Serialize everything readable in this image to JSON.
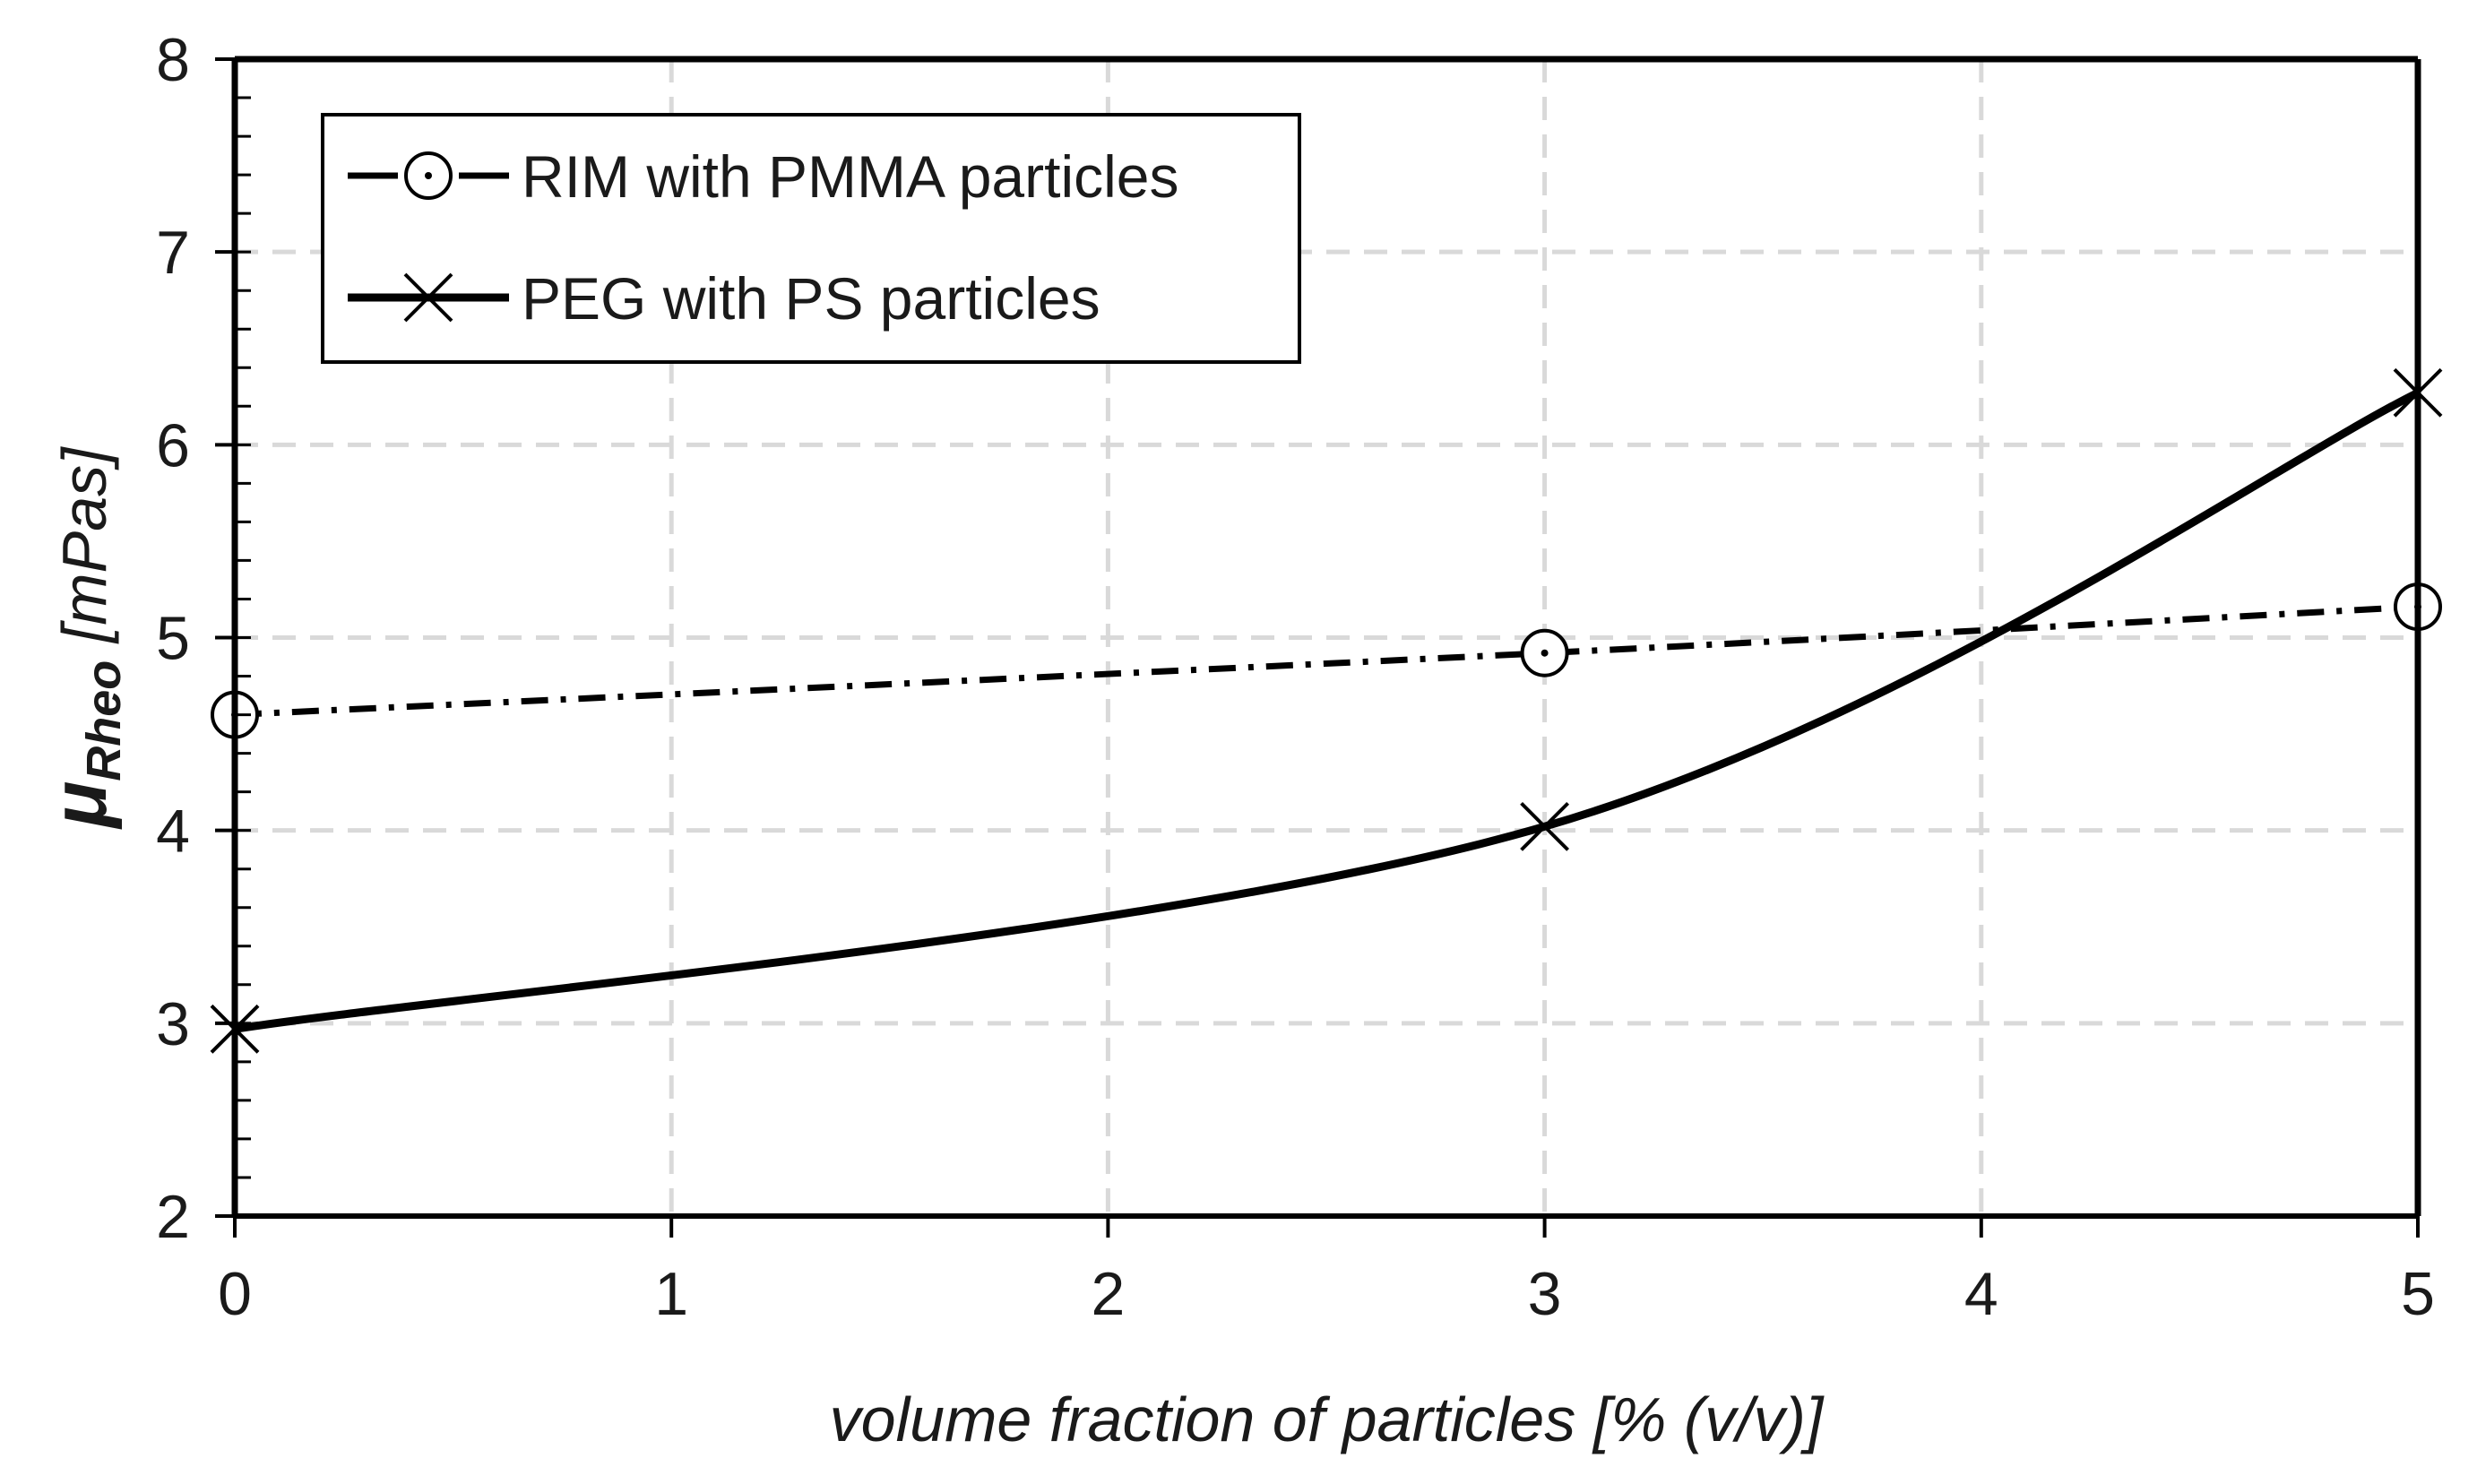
{
  "chart_data": {
    "type": "line",
    "x": [
      0,
      3,
      5
    ],
    "xlim": [
      0,
      5
    ],
    "ylim": [
      2,
      8
    ],
    "xticks": [
      "0",
      "1",
      "2",
      "3",
      "4",
      "5"
    ],
    "yticks": [
      "2",
      "3",
      "4",
      "5",
      "6",
      "7",
      "8"
    ],
    "xlabel": "volume fraction of particles [% (v/v)]",
    "ylabel_symbol": "μ",
    "ylabel_subscript": "Rheo",
    "ylabel_unit": " [mPas]",
    "grid": true,
    "legend_position": "top-left",
    "series": [
      {
        "name": "RIM with PMMA particles",
        "values": [
          4.6,
          4.92,
          5.16
        ],
        "marker": "circle-dot",
        "line_style": "dash-dot",
        "color": "#000000"
      },
      {
        "name": "PEG with PS particles",
        "values": [
          2.97,
          4.02,
          6.27
        ],
        "marker": "x",
        "line_style": "solid",
        "color": "#000000"
      }
    ],
    "colors": {
      "grid": "#d9d9d9",
      "axis": "#000000",
      "text": "#1a1a1a"
    }
  }
}
